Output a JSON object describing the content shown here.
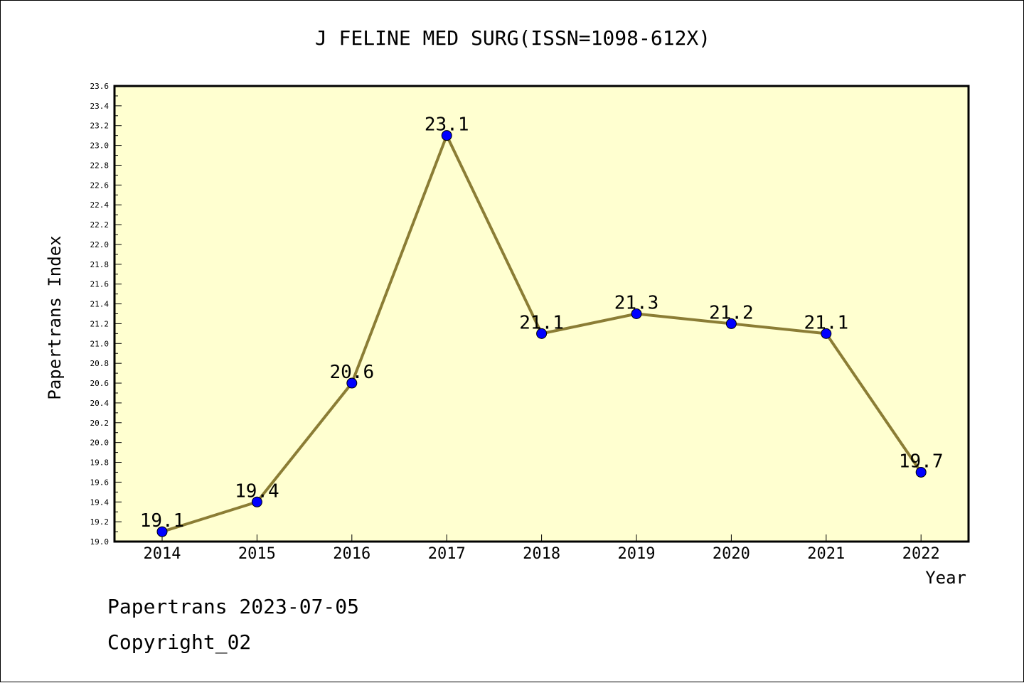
{
  "chart_data": {
    "type": "line",
    "title": "J FELINE MED SURG(ISSN=1098-612X)",
    "xlabel": "Year",
    "ylabel": "Papertrans Index",
    "categories": [
      "2014",
      "2015",
      "2016",
      "2017",
      "2018",
      "2019",
      "2020",
      "2021",
      "2022"
    ],
    "series": [
      {
        "values": [
          19.1,
          19.4,
          20.6,
          23.1,
          21.1,
          21.3,
          21.2,
          21.1,
          19.7
        ],
        "data_labels": [
          "19.1",
          "19.4",
          "20.6",
          "23.1",
          "21.1",
          "21.3",
          "21.2",
          "21.1",
          "19.7"
        ]
      }
    ],
    "ylim": [
      19.0,
      23.6
    ],
    "yticks": [
      "19.0",
      "19.2",
      "19.4",
      "19.6",
      "19.8",
      "20.0",
      "20.2",
      "20.4",
      "20.6",
      "20.8",
      "21.0",
      "21.2",
      "21.4",
      "21.6",
      "21.8",
      "22.0",
      "22.2",
      "22.4",
      "22.6",
      "22.8",
      "23.0",
      "23.2",
      "23.4",
      "23.6"
    ],
    "grid": false,
    "colors": {
      "plot_background": "#ffffd0",
      "line": "#8b7d35",
      "marker": "#0000ff"
    }
  },
  "footer": {
    "line1": "Papertrans 2023-07-05",
    "line2": "Copyright_02"
  }
}
